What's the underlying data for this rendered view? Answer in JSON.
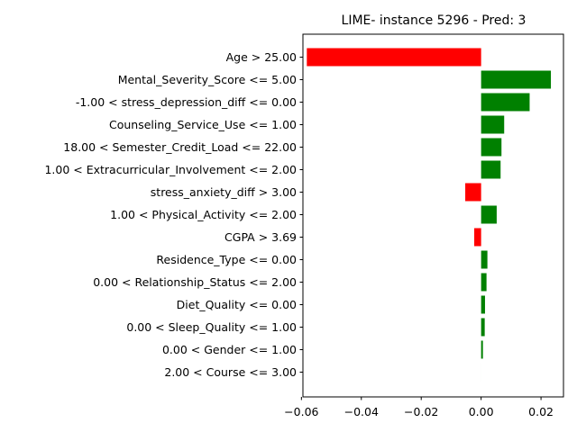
{
  "chart_data": {
    "type": "bar",
    "orientation": "horizontal",
    "title": "LIME- instance 5296 - Pred: 3",
    "xlabel": "",
    "ylabel": "",
    "xlim": [
      -0.0595,
      0.0275
    ],
    "xticks": [
      -0.06,
      -0.04,
      -0.02,
      0.0,
      0.02
    ],
    "xtick_labels": [
      "−0.06",
      "−0.04",
      "−0.02",
      "0.00",
      "0.02"
    ],
    "grid": false,
    "colors": {
      "positive": "#008000",
      "negative": "#ff0000"
    },
    "categories": [
      "Age > 25.00",
      "Mental_Severity_Score <= 5.00",
      "-1.00 < stress_depression_diff <= 0.00",
      "Counseling_Service_Use <= 1.00",
      "18.00 < Semester_Credit_Load <= 22.00",
      "1.00 < Extracurricular_Involvement <= 2.00",
      "stress_anxiety_diff > 3.00",
      "1.00 < Physical_Activity <= 2.00",
      "CGPA > 3.69",
      "Residence_Type <= 0.00",
      "0.00 < Relationship_Status <= 2.00",
      "Diet_Quality <= 0.00",
      "0.00 < Sleep_Quality <= 1.00",
      "0.00 < Gender <= 1.00",
      "2.00 < Course <= 3.00"
    ],
    "values": [
      -0.0582,
      0.0233,
      0.0162,
      0.0077,
      0.0068,
      0.0065,
      -0.0053,
      0.0052,
      -0.0023,
      0.0021,
      0.0018,
      0.0013,
      0.0012,
      0.0006,
      0.0
    ]
  }
}
